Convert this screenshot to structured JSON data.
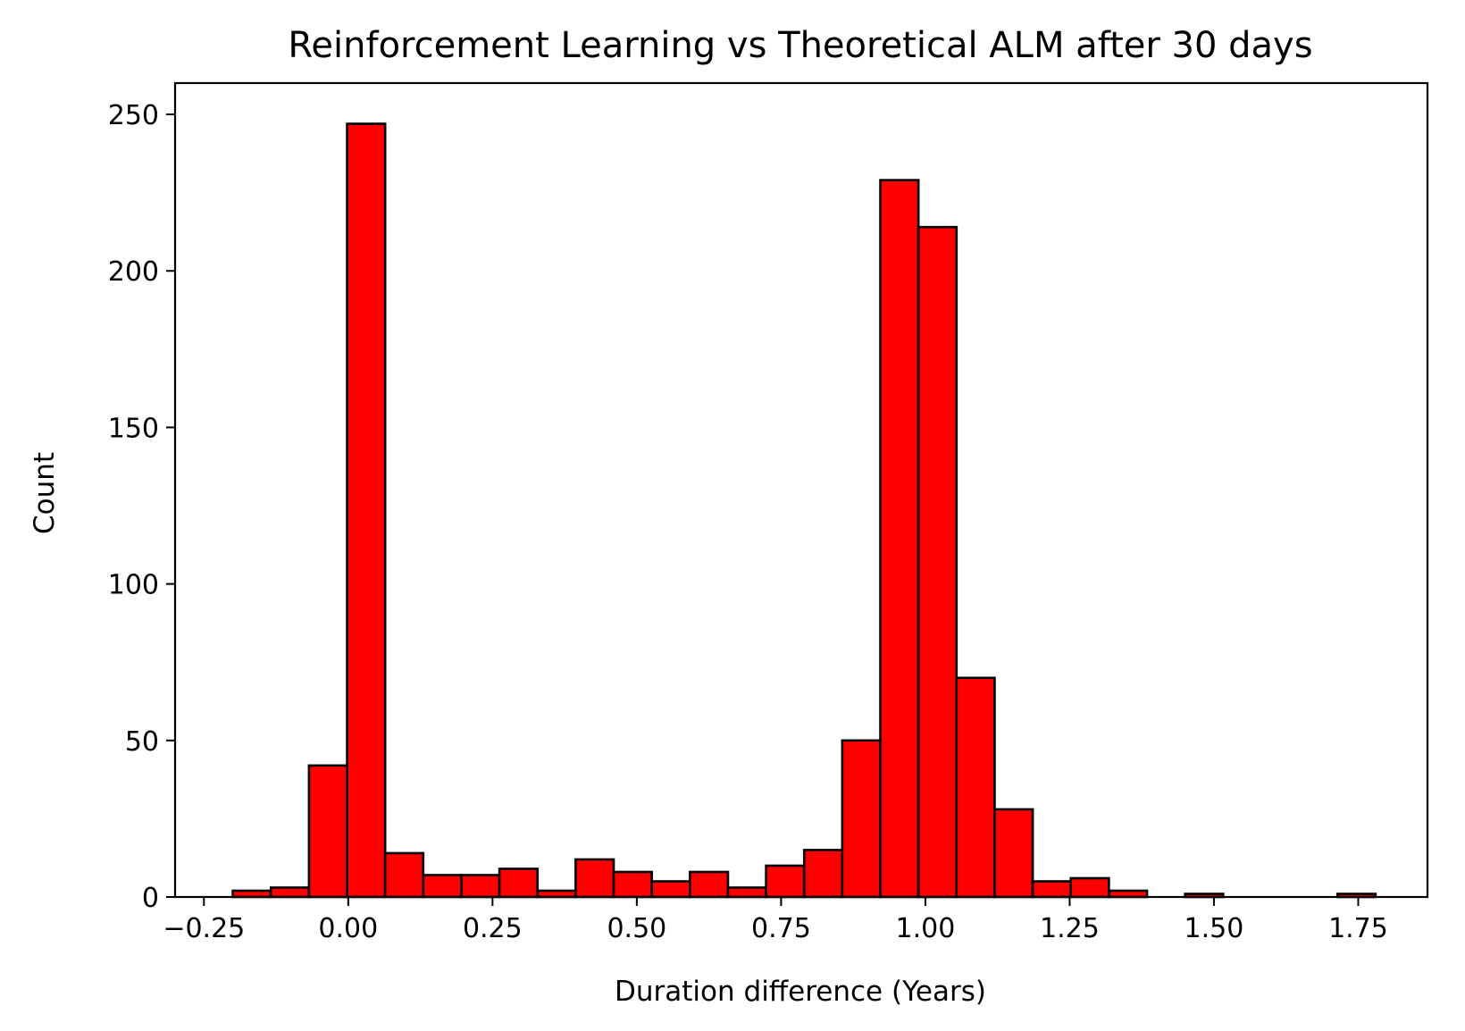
{
  "chart_data": {
    "type": "bar",
    "title": "Reinforcement Learning vs Theoretical ALM after 30 days",
    "xlabel": "Duration difference (Years)",
    "ylabel": "Count",
    "xlim": [
      -0.3,
      1.87
    ],
    "ylim": [
      0,
      260
    ],
    "grid": false,
    "bar_color": "#ff0000",
    "edge_color": "#000000",
    "x_ticks": [
      {
        "value": -0.25,
        "label": "−0.25"
      },
      {
        "value": 0.0,
        "label": "0.00"
      },
      {
        "value": 0.25,
        "label": "0.25"
      },
      {
        "value": 0.5,
        "label": "0.50"
      },
      {
        "value": 0.75,
        "label": "0.75"
      },
      {
        "value": 1.0,
        "label": "1.00"
      },
      {
        "value": 1.25,
        "label": "1.25"
      },
      {
        "value": 1.5,
        "label": "1.50"
      },
      {
        "value": 1.75,
        "label": "1.75"
      }
    ],
    "y_ticks": [
      {
        "value": 0,
        "label": "0"
      },
      {
        "value": 50,
        "label": "50"
      },
      {
        "value": 100,
        "label": "100"
      },
      {
        "value": 150,
        "label": "150"
      },
      {
        "value": 200,
        "label": "200"
      },
      {
        "value": 250,
        "label": "250"
      }
    ],
    "bins": [
      {
        "x0": -0.2,
        "x1": -0.134,
        "count": 2
      },
      {
        "x0": -0.134,
        "x1": -0.068,
        "count": 3
      },
      {
        "x0": -0.068,
        "x1": -0.002,
        "count": 42
      },
      {
        "x0": -0.002,
        "x1": 0.064,
        "count": 247
      },
      {
        "x0": 0.064,
        "x1": 0.13,
        "count": 14
      },
      {
        "x0": 0.13,
        "x1": 0.196,
        "count": 7
      },
      {
        "x0": 0.196,
        "x1": 0.262,
        "count": 7
      },
      {
        "x0": 0.262,
        "x1": 0.328,
        "count": 9
      },
      {
        "x0": 0.328,
        "x1": 0.394,
        "count": 2
      },
      {
        "x0": 0.394,
        "x1": 0.46,
        "count": 12
      },
      {
        "x0": 0.46,
        "x1": 0.526,
        "count": 8
      },
      {
        "x0": 0.526,
        "x1": 0.592,
        "count": 5
      },
      {
        "x0": 0.592,
        "x1": 0.658,
        "count": 8
      },
      {
        "x0": 0.658,
        "x1": 0.724,
        "count": 3
      },
      {
        "x0": 0.724,
        "x1": 0.79,
        "count": 10
      },
      {
        "x0": 0.79,
        "x1": 0.856,
        "count": 15
      },
      {
        "x0": 0.856,
        "x1": 0.922,
        "count": 50
      },
      {
        "x0": 0.922,
        "x1": 0.988,
        "count": 229
      },
      {
        "x0": 0.988,
        "x1": 1.054,
        "count": 214
      },
      {
        "x0": 1.054,
        "x1": 1.12,
        "count": 70
      },
      {
        "x0": 1.12,
        "x1": 1.186,
        "count": 28
      },
      {
        "x0": 1.186,
        "x1": 1.252,
        "count": 5
      },
      {
        "x0": 1.252,
        "x1": 1.318,
        "count": 6
      },
      {
        "x0": 1.318,
        "x1": 1.384,
        "count": 2
      },
      {
        "x0": 1.384,
        "x1": 1.45,
        "count": 0
      },
      {
        "x0": 1.45,
        "x1": 1.516,
        "count": 1
      },
      {
        "x0": 1.516,
        "x1": 1.582,
        "count": 0
      },
      {
        "x0": 1.582,
        "x1": 1.648,
        "count": 0
      },
      {
        "x0": 1.648,
        "x1": 1.714,
        "count": 0
      },
      {
        "x0": 1.714,
        "x1": 1.78,
        "count": 1
      }
    ]
  }
}
